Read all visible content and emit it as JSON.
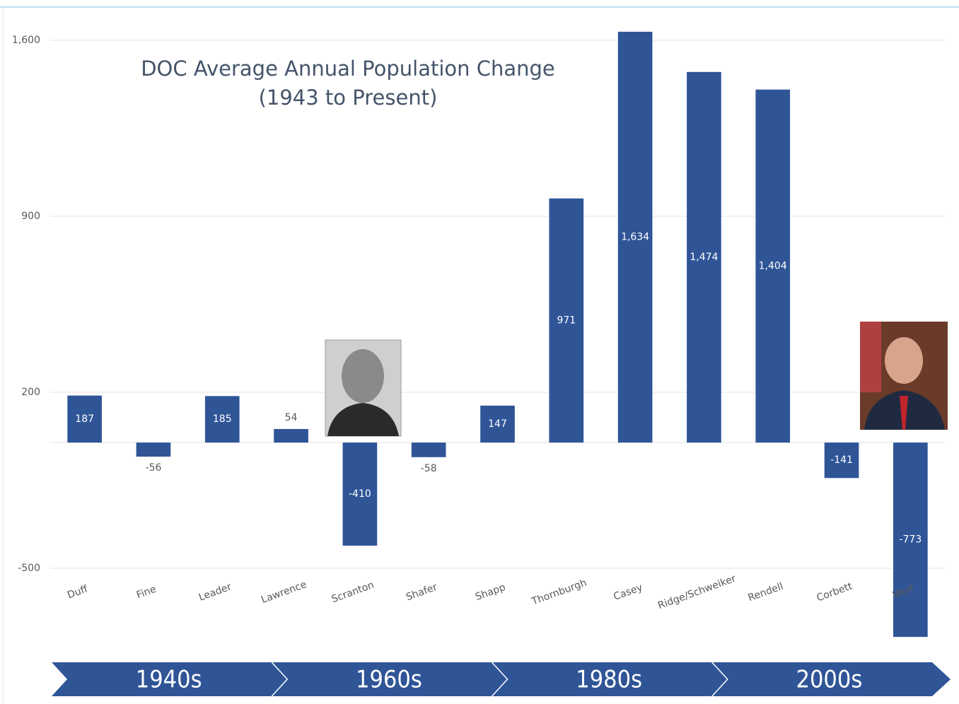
{
  "chart_data": {
    "type": "bar",
    "title": "DOC Average Annual Population Change",
    "subtitle": "(1943 to Present)",
    "categories": [
      "Duff",
      "Fine",
      "Leader",
      "Lawrence",
      "Scranton",
      "Shafer",
      "Shapp",
      "Thornburgh",
      "Casey",
      "Ridge/Schweiker",
      "Rendell",
      "Corbett",
      "Wolf"
    ],
    "values": [
      187,
      -56,
      185,
      54,
      -410,
      -58,
      147,
      971,
      1634,
      1474,
      1404,
      -141,
      -773
    ],
    "value_labels": [
      "187",
      "-56",
      "185",
      "54",
      "-410",
      "-58",
      "147",
      "971",
      "1,634",
      "1,474",
      "1,404",
      "-141",
      "-773"
    ],
    "color": "#2f5597",
    "ylim": [
      -500,
      1600
    ],
    "yticks": [
      -500,
      200,
      900,
      {
        "value": 1600,
        "label": "1,600"
      }
    ],
    "grid": true
  },
  "timeline": {
    "labels": [
      "1940s",
      "1960s",
      "1980s",
      "2000s"
    ]
  }
}
